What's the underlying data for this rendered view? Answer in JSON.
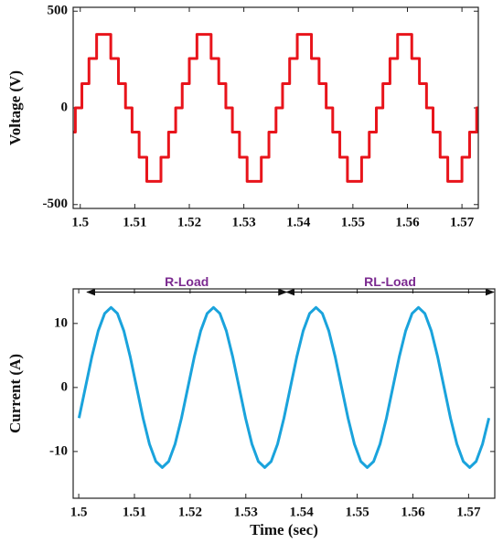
{
  "chart_data": [
    {
      "type": "line",
      "ylabel": "Voltage (V)",
      "step": "post",
      "xlim": [
        1.4987,
        1.573
      ],
      "ylim": [
        -520,
        520
      ],
      "xticks": [
        1.5,
        1.51,
        1.52,
        1.53,
        1.54,
        1.55,
        1.56,
        1.57
      ],
      "yticks": [
        500,
        0,
        -500
      ],
      "series": [
        {
          "color": "#e8141b",
          "x": [
            1.4987,
            1.4991,
            1.5003,
            1.5016,
            1.503,
            1.5056,
            1.507,
            1.5083,
            1.5095,
            1.5108,
            1.5122,
            1.5148,
            1.5162,
            1.5175,
            1.5187,
            1.52,
            1.5214,
            1.524,
            1.5254,
            1.5267,
            1.5279,
            1.5292,
            1.5306,
            1.5332,
            1.5346,
            1.5359,
            1.5371,
            1.5384,
            1.5398,
            1.5424,
            1.5438,
            1.5451,
            1.5463,
            1.5476,
            1.549,
            1.5516,
            1.553,
            1.5543,
            1.5555,
            1.5568,
            1.5582,
            1.5608,
            1.5622,
            1.5635,
            1.5647,
            1.566,
            1.5674,
            1.57,
            1.5714,
            1.5727,
            1.573
          ],
          "values": [
            -125,
            0,
            125,
            255,
            380,
            255,
            125,
            0,
            -125,
            -255,
            -380,
            -255,
            -125,
            0,
            125,
            255,
            380,
            255,
            125,
            0,
            -125,
            -255,
            -380,
            -255,
            -125,
            0,
            125,
            255,
            380,
            255,
            125,
            0,
            -125,
            -255,
            -380,
            -255,
            -125,
            0,
            125,
            255,
            380,
            255,
            125,
            0,
            -125,
            -255,
            -380,
            -255,
            -125,
            0,
            0
          ]
        }
      ]
    },
    {
      "type": "line",
      "xlabel": "Time (sec)",
      "ylabel": "Current (A)",
      "xlim": [
        1.499,
        1.5747
      ],
      "ylim": [
        -17.3,
        15.4
      ],
      "xticks": [
        1.5,
        1.51,
        1.52,
        1.53,
        1.54,
        1.55,
        1.56,
        1.57
      ],
      "yticks": [
        10,
        0,
        -10
      ],
      "annotations": [
        {
          "text": "R-Load",
          "x": [
            1.5015,
            1.5373
          ],
          "y": 14.9,
          "color": "#7b2a90"
        },
        {
          "text": "RL-Load",
          "x": [
            1.5373,
            1.5745
          ],
          "y": 14.9,
          "color": "#7b2a90"
        }
      ],
      "series": [
        {
          "color": "#1aa3dc",
          "x": [
            1.50005,
            1.5012,
            1.50235,
            1.5035,
            1.50465,
            1.5058,
            1.50695,
            1.5081,
            1.50925,
            1.5104,
            1.51155,
            1.5127,
            1.51385,
            1.515,
            1.51615,
            1.5173,
            1.51845,
            1.5196,
            1.52075,
            1.5219,
            1.52305,
            1.5242,
            1.52535,
            1.5265,
            1.52765,
            1.5288,
            1.52995,
            1.5311,
            1.53225,
            1.5334,
            1.53455,
            1.5357,
            1.53685,
            1.538,
            1.53915,
            1.5403,
            1.54145,
            1.5426,
            1.54375,
            1.5449,
            1.54605,
            1.5472,
            1.54835,
            1.5495,
            1.55065,
            1.5518,
            1.55295,
            1.5541,
            1.55525,
            1.5564,
            1.55755,
            1.5587,
            1.55985,
            1.561,
            1.56215,
            1.5633,
            1.56445,
            1.5656,
            1.56675,
            1.5679,
            1.56905,
            1.5702,
            1.57135,
            1.5725,
            1.57365
          ],
          "values": [
            -4.78,
            0,
            4.78,
            8.84,
            11.55,
            12.5,
            11.55,
            8.84,
            4.78,
            0,
            -4.78,
            -8.84,
            -11.55,
            -12.5,
            -11.55,
            -8.84,
            -4.78,
            0,
            4.78,
            8.84,
            11.55,
            12.5,
            11.55,
            8.84,
            4.78,
            0,
            -4.78,
            -8.84,
            -11.55,
            -12.5,
            -11.55,
            -8.84,
            -4.78,
            0,
            4.78,
            8.84,
            11.55,
            12.5,
            11.55,
            8.84,
            4.78,
            0,
            -4.78,
            -8.84,
            -11.55,
            -12.5,
            -11.55,
            -8.84,
            -4.78,
            0,
            4.78,
            8.84,
            11.55,
            12.5,
            11.55,
            8.84,
            4.78,
            0,
            -4.78,
            -8.84,
            -11.55,
            -12.5,
            -11.55,
            -8.84,
            -4.78
          ]
        }
      ]
    }
  ]
}
